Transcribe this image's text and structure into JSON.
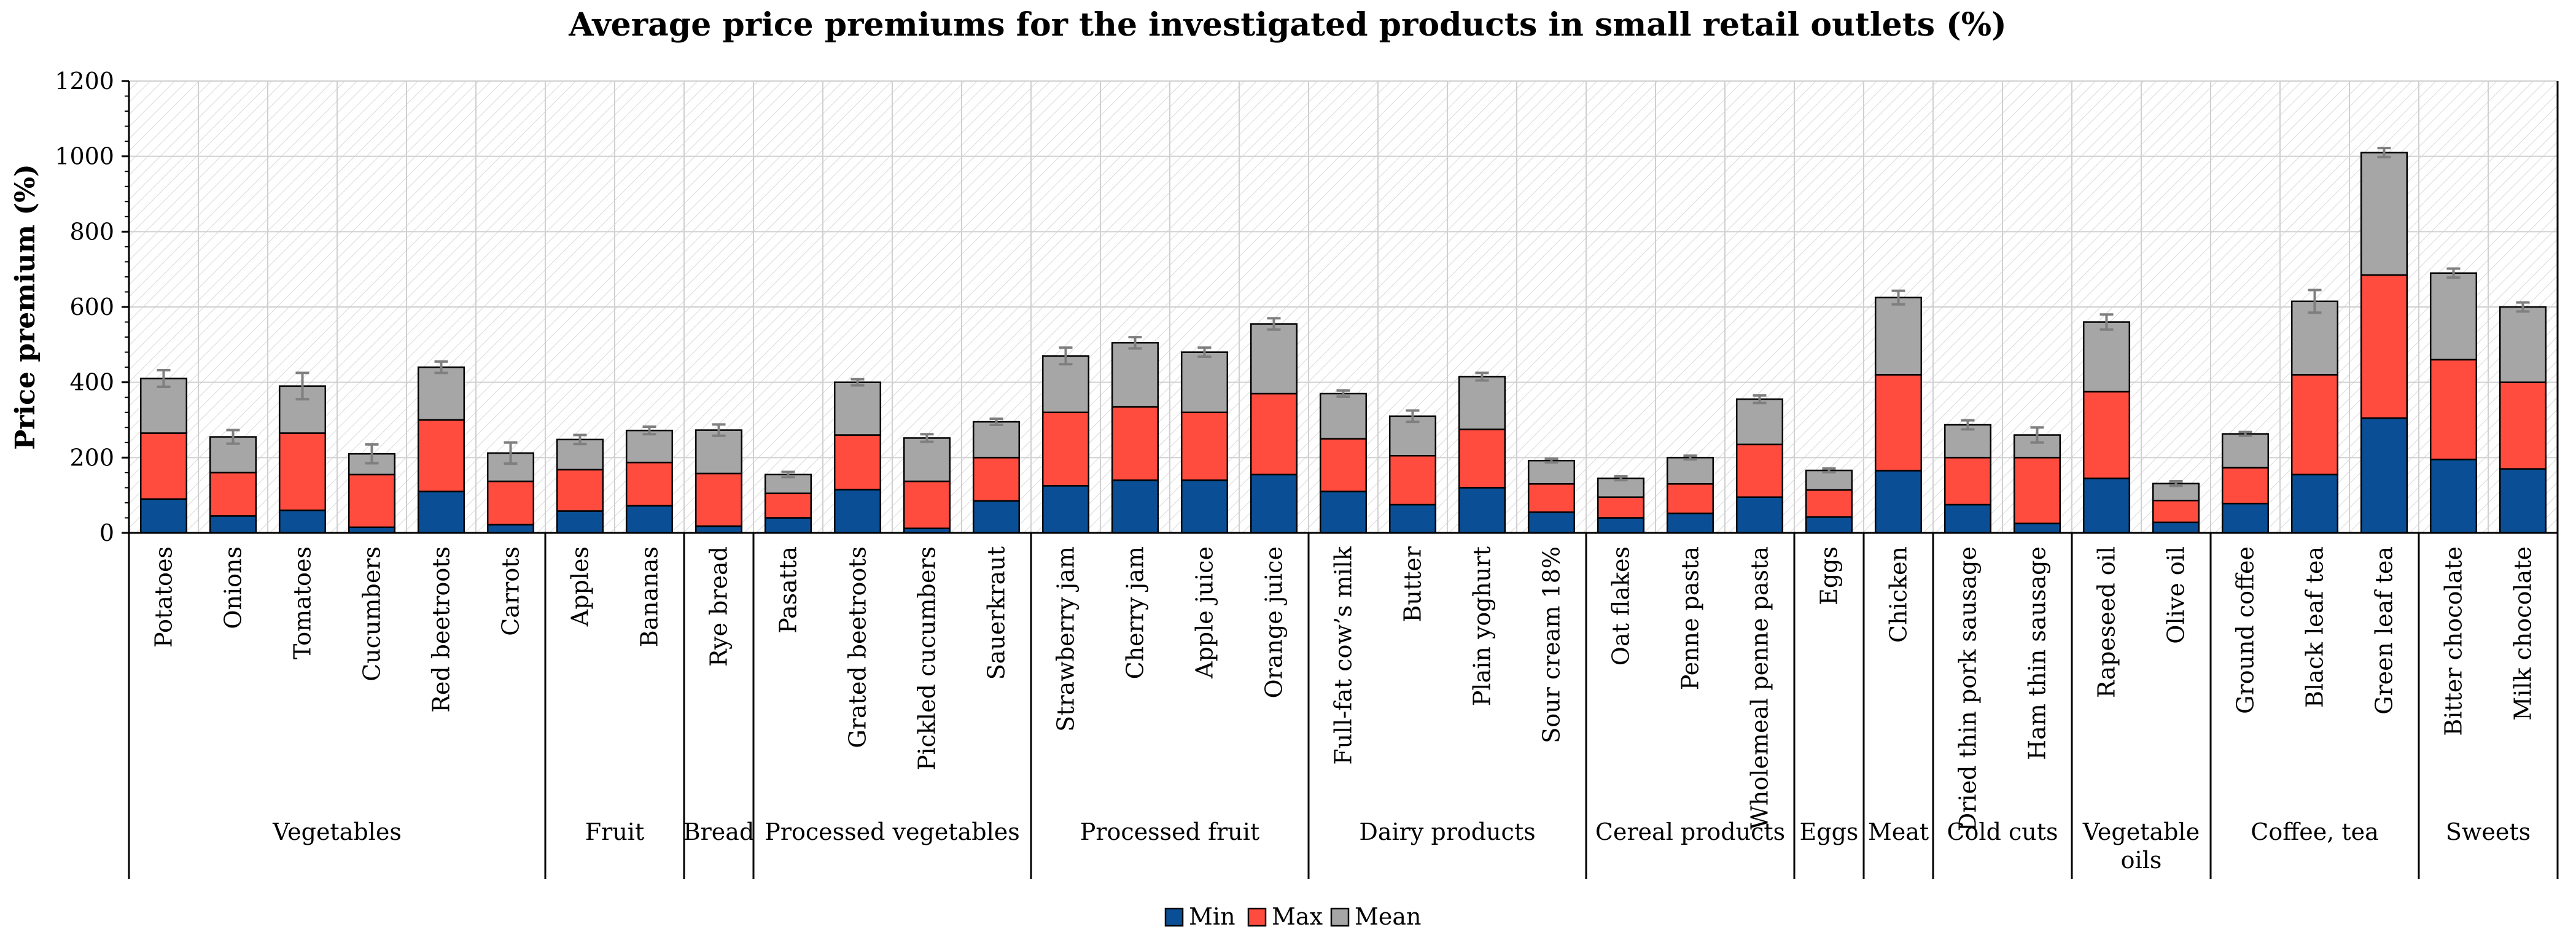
{
  "chart_data": {
    "type": "bar",
    "stacked": true,
    "title": "Average price premiums for the investigated products in small retail outlets (%)",
    "xlabel": "",
    "ylabel": "Price premium (%)",
    "ylim": [
      0,
      1200
    ],
    "yticks": [
      0,
      200,
      400,
      600,
      800,
      1000,
      1200
    ],
    "grid": true,
    "legend_position": "bottom-center",
    "colors": {
      "Min": "#0a4f95",
      "Max": "#ff4c3f",
      "Mean": "#a6a6a6",
      "error": "#7f7f7f"
    },
    "groups": [
      {
        "name": "Vegetables",
        "lines": [
          "Vegetables"
        ],
        "count": 6
      },
      {
        "name": "Fruit",
        "lines": [
          "Fruit"
        ],
        "count": 2
      },
      {
        "name": "Bread",
        "lines": [
          "Bread"
        ],
        "count": 1
      },
      {
        "name": "Processed vegetables",
        "lines": [
          "Processed vegetables"
        ],
        "count": 4
      },
      {
        "name": "Processed fruit",
        "lines": [
          "Processed fruit"
        ],
        "count": 4
      },
      {
        "name": "Dairy products",
        "lines": [
          "Dairy products"
        ],
        "count": 4
      },
      {
        "name": "Cereal products",
        "lines": [
          "Cereal products"
        ],
        "count": 3
      },
      {
        "name": "Eggs",
        "lines": [
          "Eggs"
        ],
        "count": 1
      },
      {
        "name": "Meat",
        "lines": [
          "Meat"
        ],
        "count": 1
      },
      {
        "name": "Cold cuts",
        "lines": [
          "Cold cuts"
        ],
        "count": 2
      },
      {
        "name": "Vegetable oils",
        "lines": [
          "Vegetable",
          "oils"
        ],
        "count": 2
      },
      {
        "name": "Coffee, tea",
        "lines": [
          "Coffee, tea"
        ],
        "count": 3
      },
      {
        "name": "Sweets",
        "lines": [
          "Sweets"
        ],
        "count": 2
      }
    ],
    "categories": [
      "Potatoes",
      "Onions",
      "Tomatoes",
      "Cucumbers",
      "Red beetroots",
      "Carrots",
      "Apples",
      "Bananas",
      "Rye bread",
      "Pasatta",
      "Grated beetroots",
      "Pickled cucumbers",
      "Sauerkraut",
      "Strawberry jam",
      "Cherry jam",
      "Apple juice",
      "Orange juice",
      "Full-fat cow’s milk",
      "Butter",
      "Plain yoghurt",
      "Sour cream  18%",
      "Oat flakes",
      "Penne pasta",
      "Wholemeal penne pasta",
      "Eggs",
      "Chicken",
      "Dried thin pork sausage",
      "Ham thin sausage",
      "Rapeseed oil",
      "Olive oil",
      "Ground coffee",
      "Black leaf tea",
      "Green leaf tea",
      "Bitter chocolate",
      "Milk chocolate"
    ],
    "series": [
      {
        "name": "Min",
        "values": [
          90,
          45,
          60,
          15,
          110,
          22,
          58,
          72,
          18,
          40,
          115,
          12,
          85,
          125,
          140,
          140,
          155,
          110,
          75,
          120,
          55,
          40,
          52,
          95,
          42,
          165,
          75,
          25,
          145,
          28,
          78,
          155,
          305,
          195,
          170
        ]
      },
      {
        "name": "Max",
        "values": [
          175,
          115,
          205,
          140,
          190,
          115,
          110,
          115,
          140,
          65,
          145,
          125,
          115,
          195,
          195,
          180,
          215,
          140,
          130,
          155,
          75,
          55,
          78,
          140,
          72,
          255,
          125,
          175,
          230,
          58,
          95,
          265,
          380,
          265,
          230
        ]
      },
      {
        "name": "Mean",
        "values": [
          145,
          95,
          125,
          55,
          140,
          75,
          80,
          85,
          115,
          50,
          140,
          115,
          95,
          150,
          170,
          160,
          185,
          120,
          105,
          140,
          62,
          50,
          70,
          120,
          52,
          205,
          87,
          60,
          185,
          45,
          90,
          195,
          325,
          230,
          200
        ]
      }
    ],
    "error": [
      22,
      18,
      35,
      25,
      15,
      28,
      12,
      10,
      15,
      7,
      8,
      10,
      8,
      22,
      15,
      12,
      15,
      8,
      15,
      10,
      5,
      5,
      5,
      10,
      5,
      18,
      12,
      20,
      20,
      6,
      5,
      30,
      12,
      12,
      12
    ]
  }
}
